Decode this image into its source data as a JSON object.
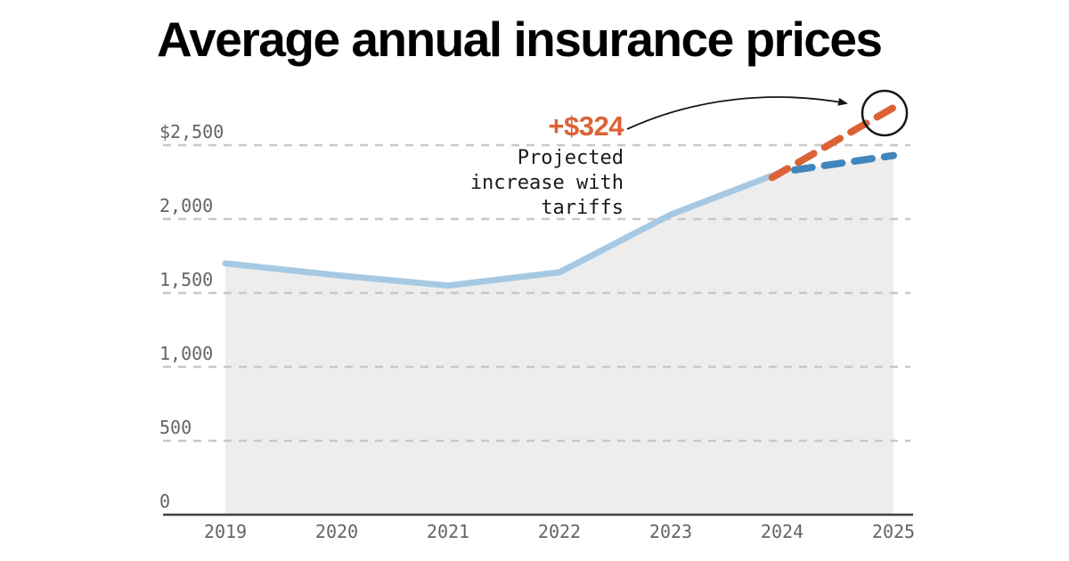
{
  "page": {
    "title": "Average annual insurance prices",
    "background": "#ffffff"
  },
  "annotation": {
    "delta": "+$324",
    "description": "Projected increase with tariffs"
  },
  "colors": {
    "title_text": "#000000",
    "history_line": "#A6C9E3",
    "baseline_projection": "#4186BD",
    "tariff_projection": "#DB6236",
    "area_fill": "#EDEDED",
    "gridline": "#C8C8C8",
    "axis_line": "#404040",
    "tick_text": "#646464",
    "annotation_accent": "#DB6236",
    "annotation_text": "#1A1A1A",
    "arrow": "#161616"
  },
  "chart_data": {
    "type": "line",
    "title": "Average annual insurance prices",
    "xlabel": "",
    "ylabel": "",
    "unit": "USD per year",
    "grid": "horizontal-dashed",
    "legend": "none",
    "x_categories": [
      "2019",
      "2020",
      "2021",
      "2022",
      "2023",
      "2024",
      "2025"
    ],
    "series": [
      {
        "name": "Average annual insurance price (actual)",
        "style": "solid",
        "color_key": "history_line",
        "years": [
          "2019",
          "2020",
          "2021",
          "2022",
          "2023",
          "2024"
        ],
        "values": [
          1700,
          1620,
          1550,
          1640,
          2030,
          2320
        ]
      },
      {
        "name": "2025 projection without tariffs",
        "style": "dashed",
        "color_key": "baseline_projection",
        "years": [
          "2024",
          "2025"
        ],
        "values": [
          2320,
          2430
        ]
      },
      {
        "name": "2025 projection with tariffs",
        "style": "dashed",
        "color_key": "tariff_projection",
        "years": [
          "2024",
          "2025"
        ],
        "values": [
          2320,
          2754
        ]
      }
    ],
    "y_ticks": [
      {
        "label": "$2,500",
        "value": 2500
      },
      {
        "label": "2,000",
        "value": 2000
      },
      {
        "label": "1,500",
        "value": 1500
      },
      {
        "label": "1,000",
        "value": 1000
      },
      {
        "label": "500",
        "value": 500
      },
      {
        "label": "0",
        "value": 0
      }
    ],
    "ylim": [
      0,
      2800
    ],
    "annotations": [
      {
        "text": "+$324",
        "description": "Projected increase with tariffs",
        "points_to": "2025 with-tariffs endpoint",
        "marker": "circle"
      }
    ]
  }
}
